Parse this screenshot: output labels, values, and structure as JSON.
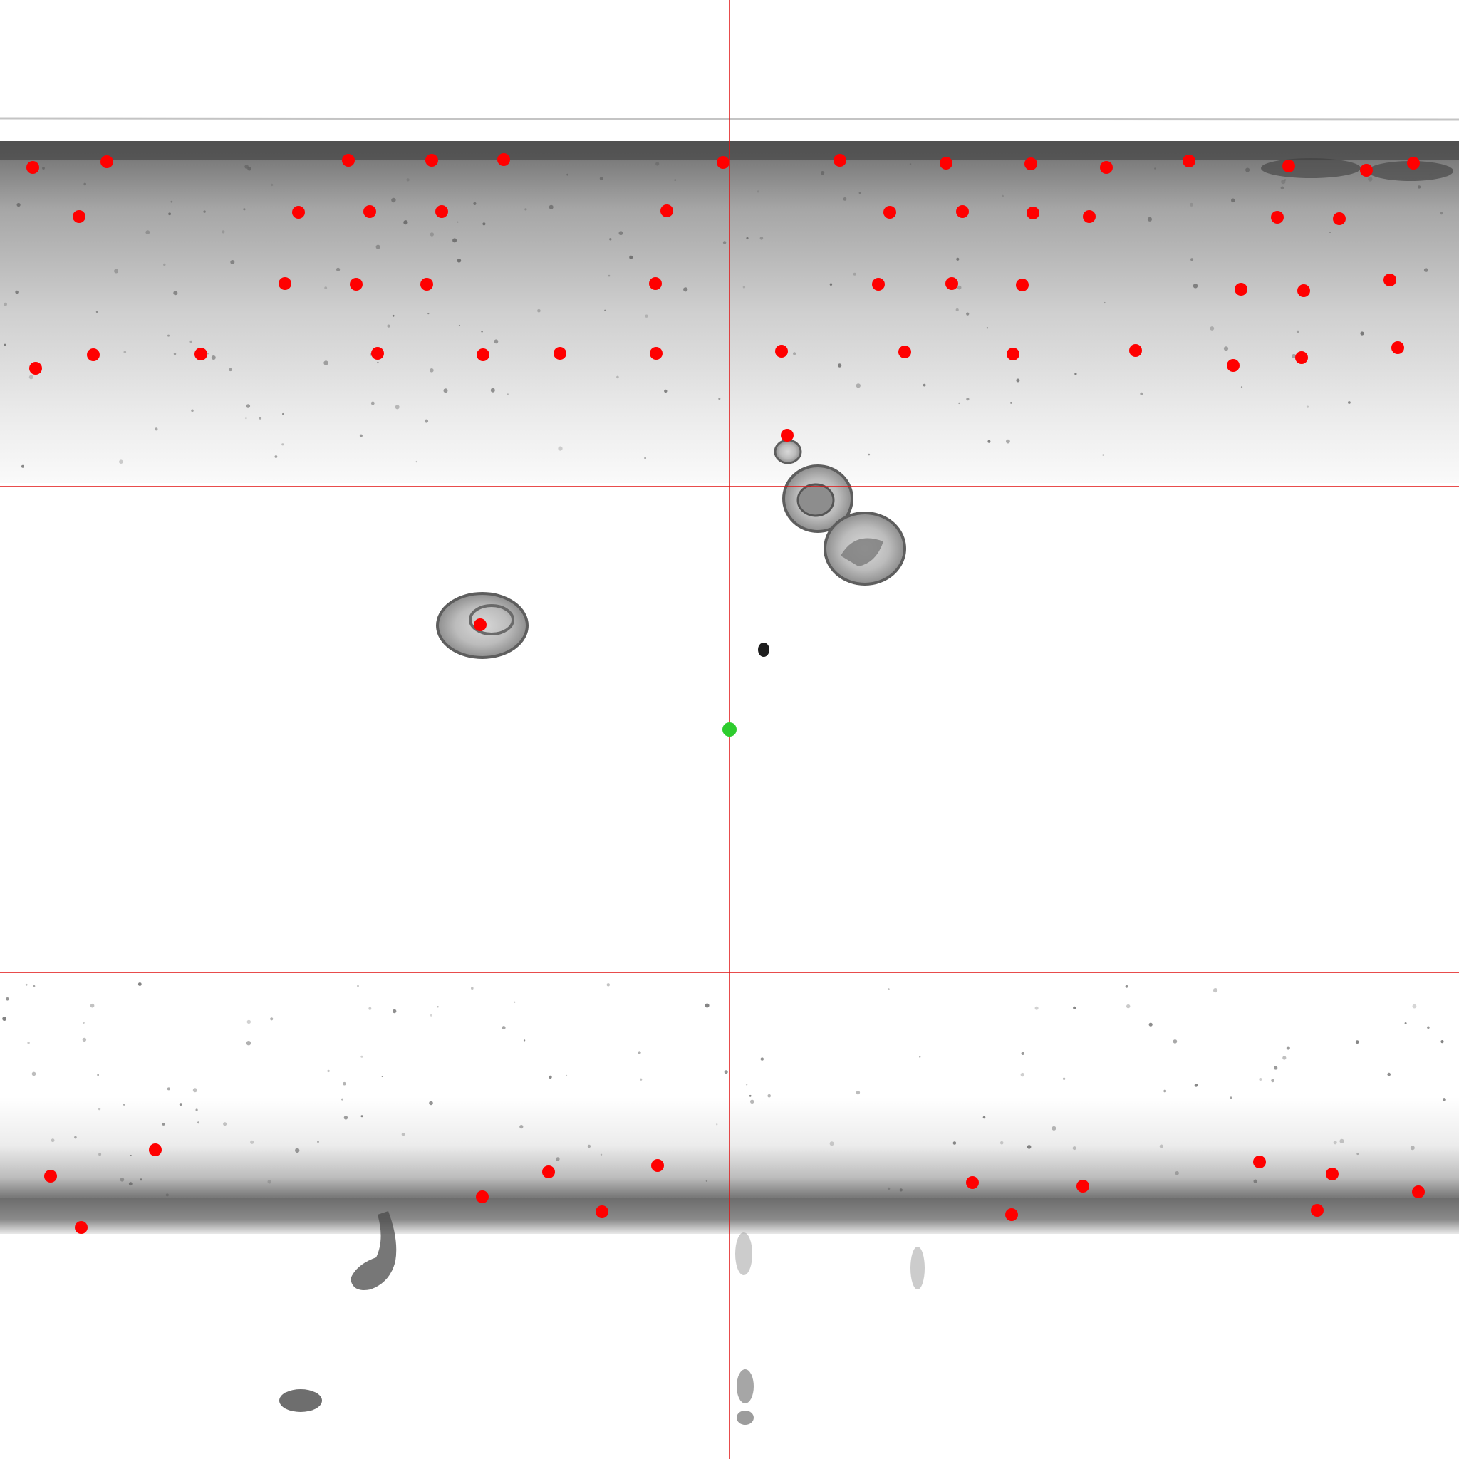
{
  "image": {
    "description_kind": "grayscale micrograph with annotation markers",
    "colors": {
      "background": "#ffffff",
      "channel_wall": "#6a6a6a",
      "marker": "#ff0000",
      "center_marker": "#2ecc2e",
      "grid_line": "#e01010"
    }
  },
  "annotations": {
    "marker_count": 63,
    "center_marker_count": 1,
    "grid_lines": {
      "vertical": 1,
      "horizontal": 2
    }
  }
}
